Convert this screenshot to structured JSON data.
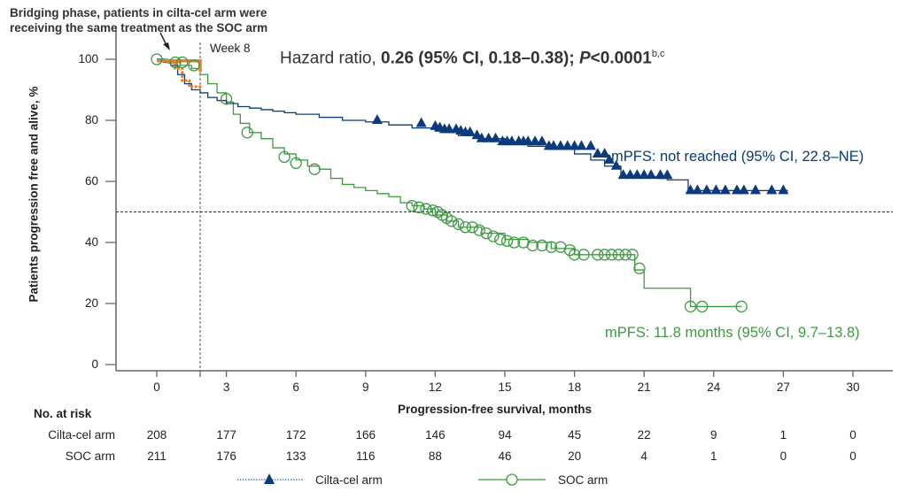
{
  "annotation": {
    "line1": "Bridging phase, patients in cilta-cel arm were",
    "line2": "receiving the same treatment as the SOC arm"
  },
  "hazard": {
    "prefix": "Hazard ratio, ",
    "bold": "0.26 (95% CI, 0.18–0.38); ",
    "p_italic": "P",
    "p_rest": "<0.0001",
    "sup": "b,c"
  },
  "week_label": "Week 8",
  "colors": {
    "cilta": "#0b3b7c",
    "soc": "#3b9b3f",
    "bridging": "#ee7d2b",
    "axis": "#666666"
  },
  "risk_table": {
    "title": "No. at risk",
    "rows": [
      {
        "label": "Cilta-cel arm",
        "values": [
          "208",
          "177",
          "172",
          "166",
          "146",
          "94",
          "45",
          "22",
          "9",
          "1",
          "0"
        ]
      },
      {
        "label": "SOC arm",
        "values": [
          "211",
          "176",
          "133",
          "116",
          "88",
          "46",
          "20",
          "4",
          "1",
          "0",
          "0"
        ]
      }
    ]
  },
  "legend": {
    "cilta": "Cilta-cel arm",
    "soc": "SOC arm"
  },
  "chart_data": {
    "type": "line",
    "title": "Hazard ratio, 0.26 (95% CI, 0.18–0.38); P<0.0001",
    "xlabel": "Progression-free survival, months",
    "ylabel": "Patients progression free and alive, %",
    "xlim": [
      -1.5,
      31
    ],
    "ylim": [
      -2,
      100
    ],
    "xticks": [
      0,
      3,
      6,
      9,
      12,
      15,
      18,
      21,
      24,
      27,
      30
    ],
    "yticks": [
      0,
      20,
      40,
      60,
      80,
      100
    ],
    "reference_lines": {
      "week8_month": 1.87,
      "median_y": 50
    },
    "annotations": [
      "mPFS: not reached (95% CI, 22.8–NE)",
      "mPFS: 11.8 months (95% CI, 9.7–13.8)",
      "Week 8"
    ],
    "legend_position": "bottom",
    "series": [
      {
        "name": "Cilta-cel arm",
        "style": "step",
        "x": [
          0,
          0.3,
          0.6,
          0.9,
          1.2,
          1.5,
          1.87,
          2.2,
          2.6,
          3.0,
          3.5,
          4.0,
          4.5,
          5.0,
          5.5,
          6.0,
          7.0,
          8.0,
          9.0,
          10.0,
          11.0,
          12.0,
          13.0,
          14.0,
          15.0,
          16.0,
          17.0,
          18.0,
          18.7,
          19.3,
          20.0,
          20.8,
          21.6,
          22.0,
          22.9,
          24.0,
          27.2
        ],
        "y": [
          100,
          99,
          98,
          95,
          92,
          90,
          89,
          87.5,
          86.5,
          85.5,
          84.5,
          84,
          83.5,
          83,
          82.5,
          82,
          81,
          80,
          79.5,
          78.5,
          77.5,
          76.5,
          75,
          74,
          73,
          71.5,
          70.5,
          69,
          67,
          65,
          62,
          61.5,
          61,
          60.5,
          57,
          57,
          57
        ],
        "censored_x": [
          9.5,
          11.4,
          12.0,
          12.2,
          12.4,
          12.6,
          12.9,
          13.1,
          13.3,
          13.5,
          13.8,
          14.0,
          14.3,
          14.6,
          14.9,
          15.1,
          15.3,
          15.6,
          15.8,
          16.0,
          16.3,
          16.6,
          16.9,
          17.1,
          17.4,
          17.7,
          18.0,
          18.3,
          18.7,
          19.0,
          19.3,
          19.5,
          19.8,
          20.1,
          20.4,
          20.7,
          21.0,
          21.3,
          21.7,
          22.0,
          23.0,
          23.3,
          23.7,
          24.1,
          24.5,
          25.0,
          25.3,
          25.8,
          26.5,
          27.0
        ],
        "censored_y": [
          80,
          79,
          78,
          77.5,
          77,
          77,
          77,
          76.5,
          76,
          76,
          75,
          74,
          74,
          74,
          73,
          73,
          73,
          73,
          73,
          73,
          73,
          73,
          71.5,
          71.5,
          71.5,
          71.5,
          71.5,
          71.5,
          71.5,
          69,
          69,
          67,
          65,
          62,
          62,
          62,
          62,
          62,
          62,
          62,
          57,
          57,
          57,
          57,
          57,
          57,
          57,
          57,
          57,
          57
        ]
      },
      {
        "name": "SOC arm",
        "style": "step",
        "x": [
          0,
          0.5,
          1.0,
          1.5,
          1.87,
          2.2,
          2.6,
          3.0,
          3.3,
          3.6,
          4.0,
          4.5,
          5.0,
          5.5,
          6.0,
          6.5,
          7.0,
          7.5,
          8.0,
          8.5,
          9.0,
          9.5,
          10.0,
          10.5,
          11.0,
          11.5,
          12.0,
          12.5,
          13.0,
          14.0,
          15.0,
          16.0,
          17.0,
          18.0,
          19.0,
          20.0,
          20.6,
          21.0,
          22.0,
          23.0,
          25.2
        ],
        "y": [
          100,
          99,
          98,
          97,
          95,
          92,
          89,
          86,
          82,
          79,
          76,
          74,
          71,
          69,
          67,
          65,
          64,
          61,
          59,
          58,
          57,
          56,
          55,
          53,
          52,
          51,
          49,
          47,
          45,
          43,
          41,
          40,
          38,
          36,
          36,
          36,
          31,
          25,
          25,
          19,
          19
        ],
        "censored_x": [
          0,
          0.8,
          1.1,
          1.6,
          3.0,
          3.9,
          5.5,
          6.0,
          6.8,
          11.0,
          11.3,
          11.6,
          11.9,
          12.1,
          12.3,
          12.5,
          12.7,
          13.0,
          13.3,
          13.6,
          13.9,
          14.2,
          14.5,
          14.8,
          15.1,
          15.4,
          15.8,
          16.2,
          16.6,
          17.0,
          17.4,
          17.8,
          18.0,
          18.4,
          19.0,
          19.3,
          19.6,
          19.9,
          20.2,
          20.5,
          20.8,
          23.0,
          23.5,
          25.2
        ],
        "censored_y": [
          100,
          99,
          99,
          98,
          87,
          76,
          68,
          66,
          64,
          52,
          51.5,
          51,
          50.5,
          50,
          49,
          48,
          47,
          46,
          45,
          45,
          44,
          43,
          42,
          41,
          40.5,
          40,
          40,
          39,
          39,
          38.5,
          38.5,
          37.5,
          36,
          36,
          36,
          36,
          36,
          36,
          36,
          36,
          31.5,
          19,
          19,
          19
        ]
      },
      {
        "name": "Bridging phase (cilta-cel)",
        "style": "step-dotted",
        "x": [
          0,
          0.4,
          0.8,
          1.1,
          1.4,
          1.87
        ],
        "y": [
          99.5,
          99,
          97,
          93,
          91,
          90
        ]
      }
    ]
  }
}
